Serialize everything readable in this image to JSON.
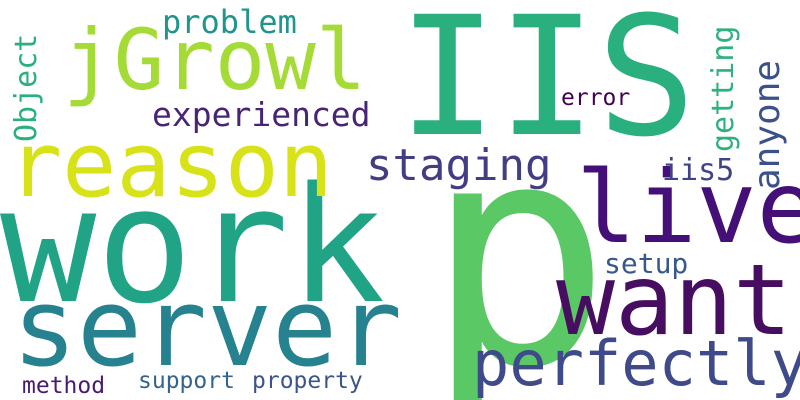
{
  "cloud": {
    "background": "#ffffff",
    "words": [
      {
        "id": "iis",
        "text": "IIS",
        "color": "#2aaf7f"
      },
      {
        "id": "work",
        "text": "work",
        "color": "#21a386"
      },
      {
        "id": "p",
        "text": "p",
        "color": "#5ac864"
      },
      {
        "id": "server",
        "text": "server",
        "color": "#26828e"
      },
      {
        "id": "reason",
        "text": "reason",
        "color": "#d8e219"
      },
      {
        "id": "jgrowl",
        "text": "jGrowl",
        "color": "#a5db36"
      },
      {
        "id": "live",
        "text": "live",
        "color": "#440f76"
      },
      {
        "id": "want",
        "text": "want",
        "color": "#470d60"
      },
      {
        "id": "perfectly",
        "text": "perfectly",
        "color": "#3e4a89"
      },
      {
        "id": "staging",
        "text": "staging",
        "color": "#433d84"
      },
      {
        "id": "experienced",
        "text": "experienced",
        "color": "#482475"
      },
      {
        "id": "problem",
        "text": "problem",
        "color": "#1f958b"
      },
      {
        "id": "anyone",
        "text": "anyone",
        "color": "#3b518b"
      },
      {
        "id": "getting",
        "text": "getting",
        "color": "#2db27d"
      },
      {
        "id": "object",
        "text": "Object",
        "color": "#2ab07f"
      },
      {
        "id": "error",
        "text": "error",
        "color": "#440154"
      },
      {
        "id": "iis5",
        "text": "iis5",
        "color": "#404387"
      },
      {
        "id": "setup",
        "text": "setup",
        "color": "#38588c"
      },
      {
        "id": "support",
        "text": "support",
        "color": "#32658e"
      },
      {
        "id": "property",
        "text": "property",
        "color": "#3a548c"
      },
      {
        "id": "method",
        "text": "method",
        "color": "#481b6d"
      }
    ]
  }
}
